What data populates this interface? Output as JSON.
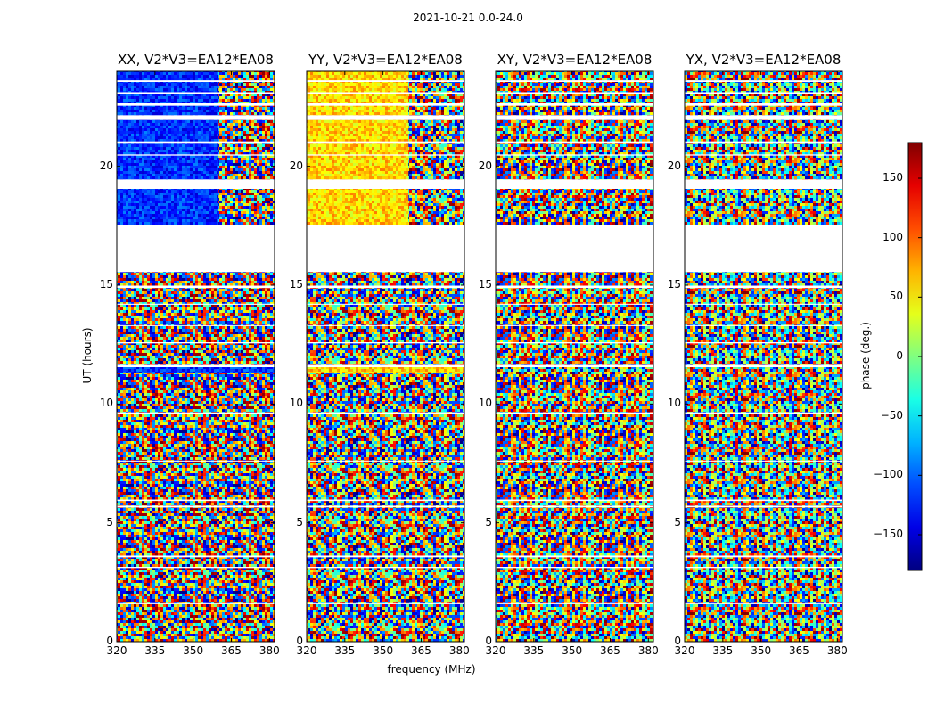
{
  "suptitle": "2021-10-21 0.0-24.0",
  "chart_data": {
    "type": "heatmap",
    "xlabel": "frequency (MHz)",
    "ylabel": "UT (hours)",
    "xlim": [
      320,
      382
    ],
    "ylim": [
      0,
      24
    ],
    "xticks": [
      "320",
      "335",
      "350",
      "365",
      "380"
    ],
    "yticks": [
      "0",
      "5",
      "10",
      "15",
      "20"
    ],
    "colormap": "jet",
    "colorbar": {
      "label": "phase (deg.)",
      "range": [
        -180,
        180
      ],
      "ticks": [
        "150",
        "100",
        "50",
        "0",
        "−50",
        "−100",
        "−150"
      ]
    },
    "panels": [
      {
        "title": "XX, V2*V3=EA12*EA08",
        "mean_phase_deg": -120,
        "coherent_until_mhz": 360
      },
      {
        "title": "YY, V2*V3=EA12*EA08",
        "mean_phase_deg": 60,
        "coherent_until_mhz": 360
      },
      {
        "title": "XY, V2*V3=EA12*EA08",
        "mean_phase_deg": null,
        "coherent_until_mhz": null
      },
      {
        "title": "YX, V2*V3=EA12*EA08",
        "mean_phase_deg": null,
        "coherent_until_mhz": null
      }
    ],
    "blank_ut_ranges_hours": [
      [
        23.55,
        23.62
      ],
      [
        23.05,
        23.12
      ],
      [
        22.55,
        22.65
      ],
      [
        21.95,
        22.15
      ],
      [
        20.95,
        21.05
      ],
      [
        20.45,
        20.5
      ],
      [
        19.05,
        19.45
      ],
      [
        17.55,
        15.55
      ],
      [
        14.88,
        14.98
      ],
      [
        14.18,
        14.22
      ],
      [
        13.28,
        13.32
      ],
      [
        12.55,
        12.6
      ],
      [
        11.55,
        11.68
      ],
      [
        9.58,
        9.65
      ],
      [
        7.58,
        7.62
      ],
      [
        5.92,
        5.98
      ],
      [
        5.65,
        5.72
      ],
      [
        3.55,
        3.62
      ],
      [
        3.1,
        3.15
      ],
      [
        1.58,
        1.62
      ]
    ]
  }
}
